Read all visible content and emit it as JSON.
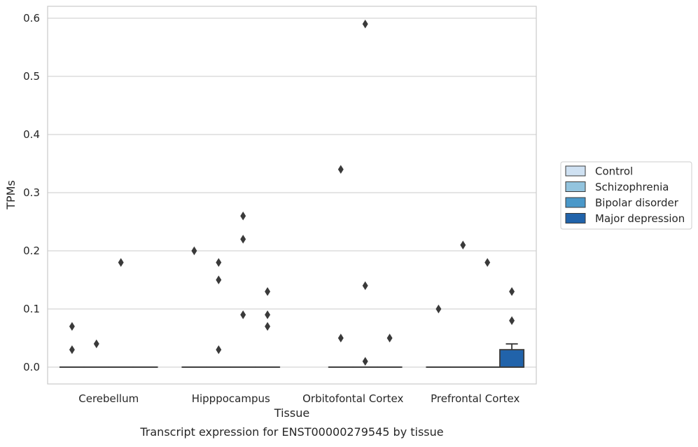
{
  "chart_data": {
    "type": "boxplot",
    "title": "",
    "xlabel": "Tissue",
    "ylabel": "TPMs",
    "caption": "Transcript expression for ENST00000279545 by tissue",
    "ylim": [
      -0.03,
      0.62
    ],
    "yticks": [
      "0.0",
      "0.1",
      "0.2",
      "0.3",
      "0.4",
      "0.5",
      "0.6"
    ],
    "grid": "horizontal",
    "legend_position": "right",
    "categories": [
      "Cerebellum",
      "Hipppocampus",
      "Orbitofontal Cortex",
      "Prefrontal Cortex"
    ],
    "series": [
      {
        "name": "Control",
        "color": "#cfe1f2",
        "boxes": [
          {
            "q1": 0,
            "median": 0,
            "q3": 0,
            "whisker_low": 0,
            "whisker_high": 0,
            "outliers": [
              0.07,
              0.03
            ]
          },
          {
            "q1": 0,
            "median": 0,
            "q3": 0,
            "whisker_low": 0,
            "whisker_high": 0,
            "outliers": [
              0.2
            ]
          },
          null,
          {
            "q1": 0,
            "median": 0,
            "q3": 0,
            "whisker_low": 0,
            "whisker_high": 0,
            "outliers": [
              0.1
            ]
          }
        ]
      },
      {
        "name": "Schizophrenia",
        "color": "#93c4de",
        "boxes": [
          {
            "q1": 0,
            "median": 0,
            "q3": 0,
            "whisker_low": 0,
            "whisker_high": 0,
            "outliers": [
              0.04
            ]
          },
          {
            "q1": 0,
            "median": 0,
            "q3": 0,
            "whisker_low": 0,
            "whisker_high": 0,
            "outliers": [
              0.18,
              0.15,
              0.03
            ]
          },
          {
            "q1": 0,
            "median": 0,
            "q3": 0,
            "whisker_low": 0,
            "whisker_high": 0,
            "outliers": [
              0.34,
              0.05
            ]
          },
          {
            "q1": 0,
            "median": 0,
            "q3": 0,
            "whisker_low": 0,
            "whisker_high": 0,
            "outliers": [
              0.21
            ]
          }
        ]
      },
      {
        "name": "Bipolar disorder",
        "color": "#4a98c9",
        "boxes": [
          {
            "q1": 0,
            "median": 0,
            "q3": 0,
            "whisker_low": 0,
            "whisker_high": 0,
            "outliers": [
              0.18
            ]
          },
          {
            "q1": 0,
            "median": 0,
            "q3": 0,
            "whisker_low": 0,
            "whisker_high": 0,
            "outliers": [
              0.26,
              0.22,
              0.09
            ]
          },
          {
            "q1": 0,
            "median": 0,
            "q3": 0,
            "whisker_low": 0,
            "whisker_high": 0,
            "outliers": [
              0.59,
              0.14,
              0.01
            ]
          },
          {
            "q1": 0,
            "median": 0,
            "q3": 0,
            "whisker_low": 0,
            "whisker_high": 0,
            "outliers": [
              0.18
            ]
          }
        ]
      },
      {
        "name": "Major depression",
        "color": "#2163aa",
        "boxes": [
          {
            "q1": 0,
            "median": 0,
            "q3": 0,
            "whisker_low": 0,
            "whisker_high": 0,
            "outliers": []
          },
          {
            "q1": 0,
            "median": 0,
            "q3": 0,
            "whisker_low": 0,
            "whisker_high": 0,
            "outliers": [
              0.13,
              0.09,
              0.07
            ]
          },
          {
            "q1": 0,
            "median": 0,
            "q3": 0,
            "whisker_low": 0,
            "whisker_high": 0,
            "outliers": [
              0.05
            ]
          },
          {
            "q1": 0,
            "median": 0,
            "q3": 0.03,
            "whisker_low": 0,
            "whisker_high": 0.04,
            "outliers": [
              0.13,
              0.08
            ]
          }
        ]
      }
    ]
  }
}
